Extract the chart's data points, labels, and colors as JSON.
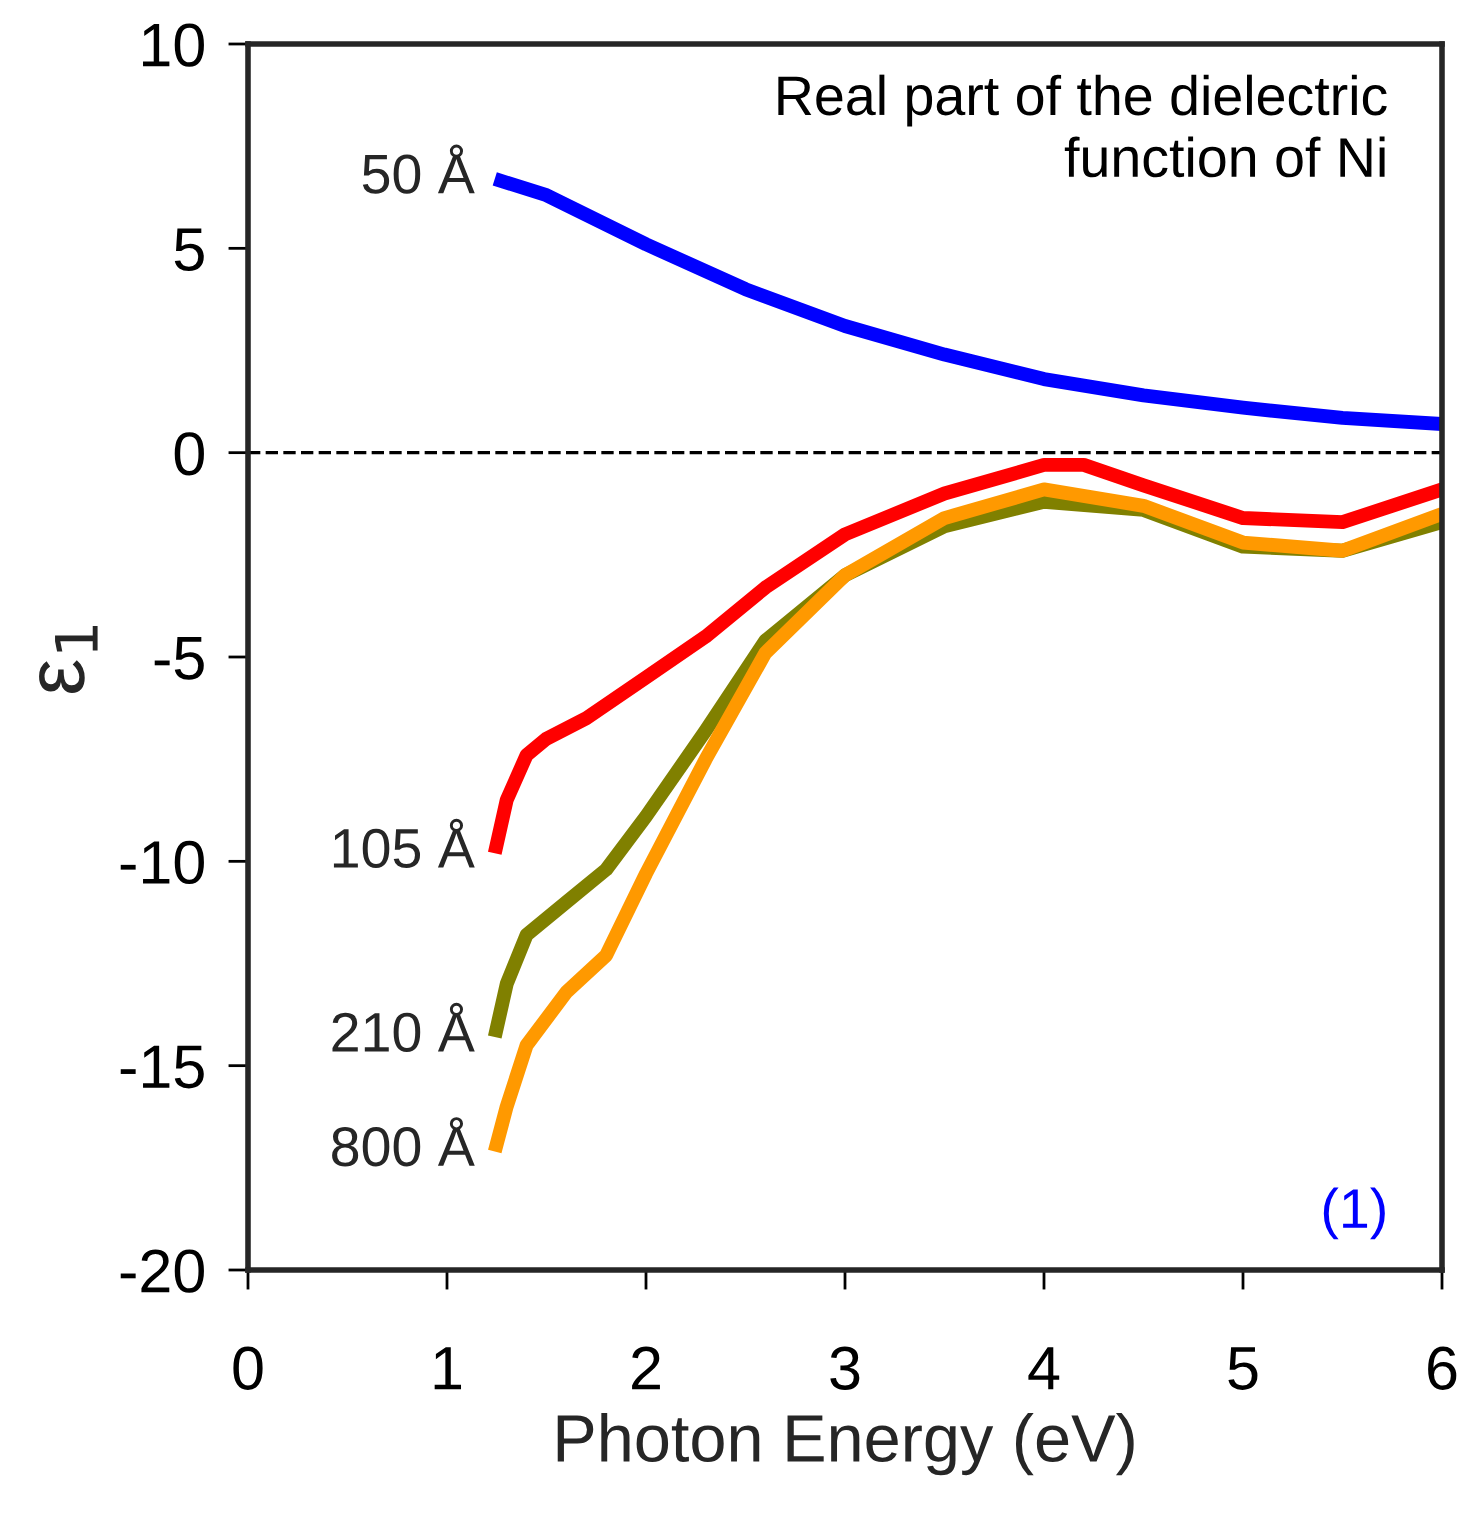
{
  "chart_data": {
    "type": "line",
    "xlabel": "Photon Energy (eV)",
    "ylabel": "ε$_{1}$",
    "xlim": [
      0,
      6
    ],
    "xticks": [
      0,
      1,
      2,
      3,
      4,
      5,
      6
    ],
    "ylim": [
      -20,
      10
    ],
    "yticks": [
      -20,
      -15,
      -10,
      -5,
      0,
      5,
      10
    ],
    "grid": false,
    "legend": false,
    "marker": "none",
    "line_style": "solid",
    "series": [
      {
        "name": "50 Å",
        "color": "#0000ff",
        "x": [
          1.24,
          1.5,
          2,
          2.5,
          3,
          3.5,
          4,
          4.5,
          5,
          5.5,
          6
        ],
        "values": [
          6.7,
          6.3,
          5.1,
          4.0,
          3.1,
          2.4,
          1.8,
          1.4,
          1.1,
          0.85,
          0.7
        ]
      },
      {
        "name": "105 Å",
        "color": "#ff0000",
        "x": [
          1.24,
          1.3,
          1.4,
          1.5,
          1.7,
          2,
          2.3,
          2.6,
          3,
          3.5,
          4,
          4.2,
          4.5,
          5,
          5.5,
          6
        ],
        "values": [
          -9.8,
          -8.5,
          -7.4,
          -7.0,
          -6.5,
          -5.5,
          -4.5,
          -3.3,
          -2.0,
          -1.0,
          -0.3,
          -0.3,
          -0.8,
          -1.6,
          -1.7,
          -0.9
        ]
      },
      {
        "name": "210 Å",
        "color": "#808000",
        "x": [
          1.24,
          1.3,
          1.4,
          1.6,
          1.8,
          2,
          2.3,
          2.6,
          3,
          3.5,
          4,
          4.5,
          5,
          5.5,
          6
        ],
        "values": [
          -14.3,
          -13.0,
          -11.8,
          -11.0,
          -10.2,
          -8.9,
          -6.8,
          -4.6,
          -3.0,
          -1.8,
          -1.2,
          -1.4,
          -2.3,
          -2.4,
          -1.7
        ]
      },
      {
        "name": "800 Å",
        "color": "#ff9900",
        "x": [
          1.24,
          1.3,
          1.4,
          1.6,
          1.8,
          2,
          2.3,
          2.6,
          3,
          3.5,
          4,
          4.5,
          5,
          5.5,
          6
        ],
        "values": [
          -17.1,
          -16.0,
          -14.5,
          -13.2,
          -12.3,
          -10.3,
          -7.5,
          -4.9,
          -3.0,
          -1.6,
          -0.9,
          -1.3,
          -2.2,
          -2.4,
          -1.5
        ]
      }
    ],
    "ref_lines": [
      {
        "axis": "y",
        "value": 0,
        "color": "#000000",
        "line_style": "dashed"
      }
    ],
    "annotations": [
      "Real part of the dielectric\nfunction of Ni",
      "(1)"
    ]
  }
}
